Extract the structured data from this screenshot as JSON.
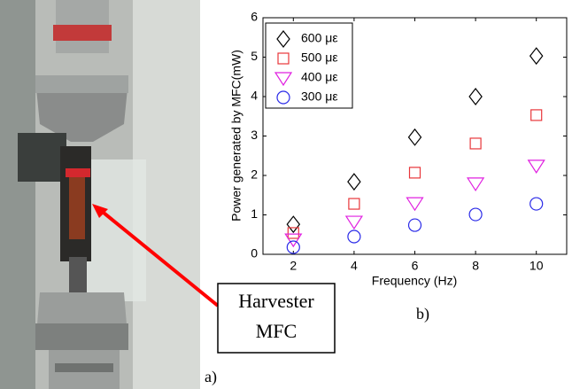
{
  "chart_data": {
    "type": "scatter",
    "xlabel": "Frequency (Hz)",
    "ylabel": "Power generated by MFC(mW)",
    "x": [
      2,
      4,
      6,
      8,
      10
    ],
    "series": [
      {
        "name": "600 με",
        "color": "#000000",
        "marker": "diamond",
        "values": [
          0.76,
          1.84,
          2.97,
          4.0,
          5.03
        ]
      },
      {
        "name": "500 με",
        "color": "#e8363a",
        "marker": "square",
        "values": [
          0.54,
          1.28,
          2.07,
          2.81,
          3.53
        ]
      },
      {
        "name": "400 με",
        "color": "#e020e0",
        "marker": "triangle-down",
        "values": [
          0.38,
          0.83,
          1.3,
          1.8,
          2.25
        ]
      },
      {
        "name": "300 με",
        "color": "#2a2ae8",
        "marker": "circle",
        "values": [
          0.18,
          0.45,
          0.74,
          1.01,
          1.28
        ]
      }
    ],
    "xlim": [
      1,
      11
    ],
    "xticks": [
      2,
      4,
      6,
      8,
      10
    ],
    "ylim": [
      0,
      6
    ],
    "yticks": [
      0,
      1,
      2,
      3,
      4,
      5,
      6
    ],
    "legend": "upper-left"
  },
  "figure": {
    "panel_a_label": "a)",
    "panel_b_label": "b)",
    "callout_lines": [
      "Harvester",
      "MFC"
    ]
  }
}
